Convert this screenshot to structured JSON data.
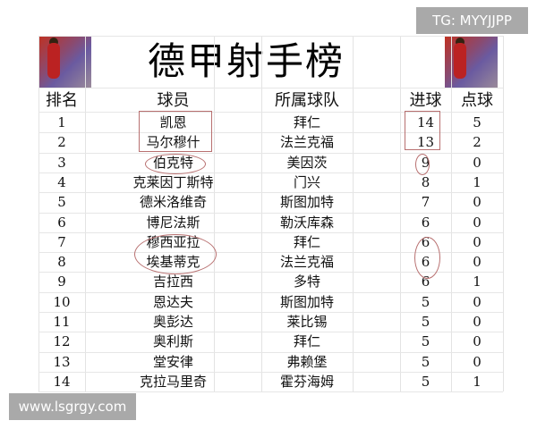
{
  "title": "德甲射手榜",
  "watermark_top": "TG: MYYJJPP",
  "watermark_bottom": "www.lsgrgy.com",
  "headers": {
    "rank": "排名",
    "player": "球员",
    "team": "所属球队",
    "goals": "进球",
    "penalties": "点球"
  },
  "rows": [
    {
      "rank": "1",
      "player": "凯恩",
      "team": "拜仁",
      "goals": "14",
      "penalties": "5"
    },
    {
      "rank": "2",
      "player": "马尔穆什",
      "team": "法兰克福",
      "goals": "13",
      "penalties": "2"
    },
    {
      "rank": "3",
      "player": "伯克特",
      "team": "美因茨",
      "goals": "9",
      "penalties": "0"
    },
    {
      "rank": "4",
      "player": "克莱因丁斯特",
      "team": "门兴",
      "goals": "8",
      "penalties": "1"
    },
    {
      "rank": "5",
      "player": "德米洛维奇",
      "team": "斯图加特",
      "goals": "7",
      "penalties": "0"
    },
    {
      "rank": "6",
      "player": "博尼法斯",
      "team": "勒沃库森",
      "goals": "6",
      "penalties": "0"
    },
    {
      "rank": "7",
      "player": "穆西亚拉",
      "team": "拜仁",
      "goals": "6",
      "penalties": "0"
    },
    {
      "rank": "8",
      "player": "埃基蒂克",
      "team": "法兰克福",
      "goals": "6",
      "penalties": "0"
    },
    {
      "rank": "9",
      "player": "吉拉西",
      "team": "多特",
      "goals": "6",
      "penalties": "1"
    },
    {
      "rank": "10",
      "player": "恩达夫",
      "team": "斯图加特",
      "goals": "5",
      "penalties": "0"
    },
    {
      "rank": "11",
      "player": "奥彭达",
      "team": "莱比锡",
      "goals": "5",
      "penalties": "0"
    },
    {
      "rank": "12",
      "player": "奥利斯",
      "team": "拜仁",
      "goals": "5",
      "penalties": "0"
    },
    {
      "rank": "13",
      "player": "堂安律",
      "team": "弗赖堡",
      "goals": "5",
      "penalties": "0"
    },
    {
      "rank": "14",
      "player": "克拉马里奇",
      "team": "霍芬海姆",
      "goals": "5",
      "penalties": "1"
    }
  ],
  "annotation_color": "#b87070"
}
